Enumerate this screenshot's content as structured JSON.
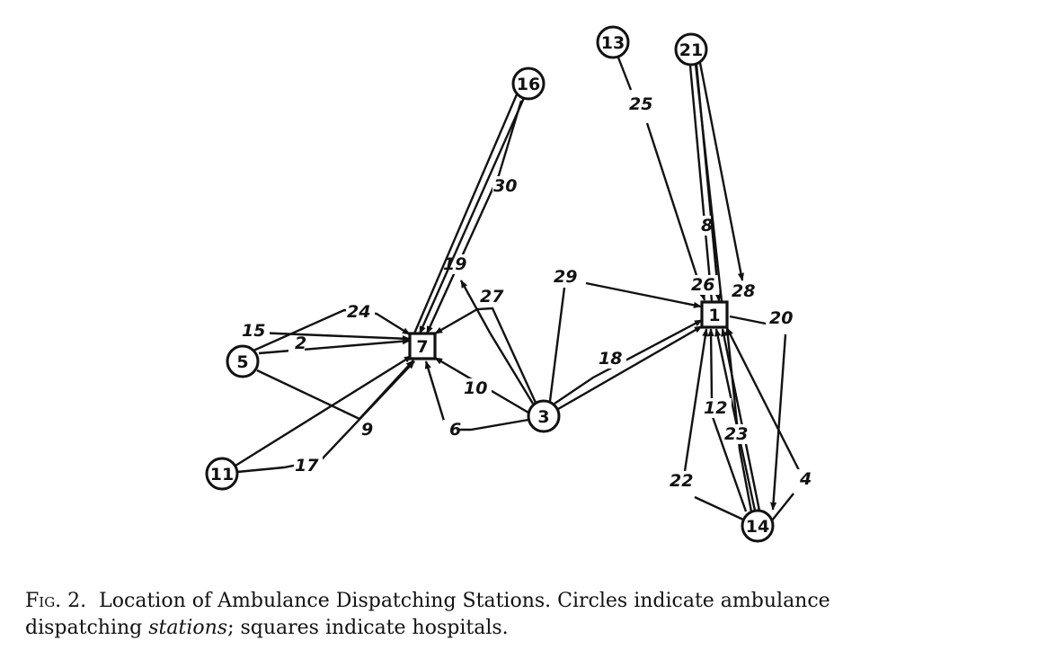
{
  "nodes": [
    {
      "id": "1",
      "label": "1",
      "shape": "square"
    },
    {
      "id": "3",
      "label": "3",
      "shape": "circle"
    },
    {
      "id": "5",
      "label": "5",
      "shape": "circle"
    },
    {
      "id": "7",
      "label": "7",
      "shape": "square"
    },
    {
      "id": "11",
      "label": "11",
      "shape": "circle"
    },
    {
      "id": "13",
      "label": "13",
      "shape": "circle"
    },
    {
      "id": "14",
      "label": "14",
      "shape": "circle"
    },
    {
      "id": "16",
      "label": "16",
      "shape": "circle"
    },
    {
      "id": "21",
      "label": "21",
      "shape": "circle"
    }
  ],
  "edges": [
    {
      "label": "2"
    },
    {
      "label": "4"
    },
    {
      "label": "6"
    },
    {
      "label": "8"
    },
    {
      "label": "9"
    },
    {
      "label": "10"
    },
    {
      "label": "12"
    },
    {
      "label": "15"
    },
    {
      "label": "17"
    },
    {
      "label": "18"
    },
    {
      "label": "19"
    },
    {
      "label": "20"
    },
    {
      "label": "22"
    },
    {
      "label": "23"
    },
    {
      "label": "24"
    },
    {
      "label": "25"
    },
    {
      "label": "26"
    },
    {
      "label": "27"
    },
    {
      "label": "28"
    },
    {
      "label": "29"
    },
    {
      "label": "30"
    }
  ],
  "caption": {
    "fig_number": "Fig. 2.",
    "text_main": "Location of Ambulance Dispatching Stations. Circles indicate ambulance",
    "text_line2_a": "dispatching",
    "text_line2_b": "stations",
    "text_line2_c": "; squares indicate hospitals."
  }
}
